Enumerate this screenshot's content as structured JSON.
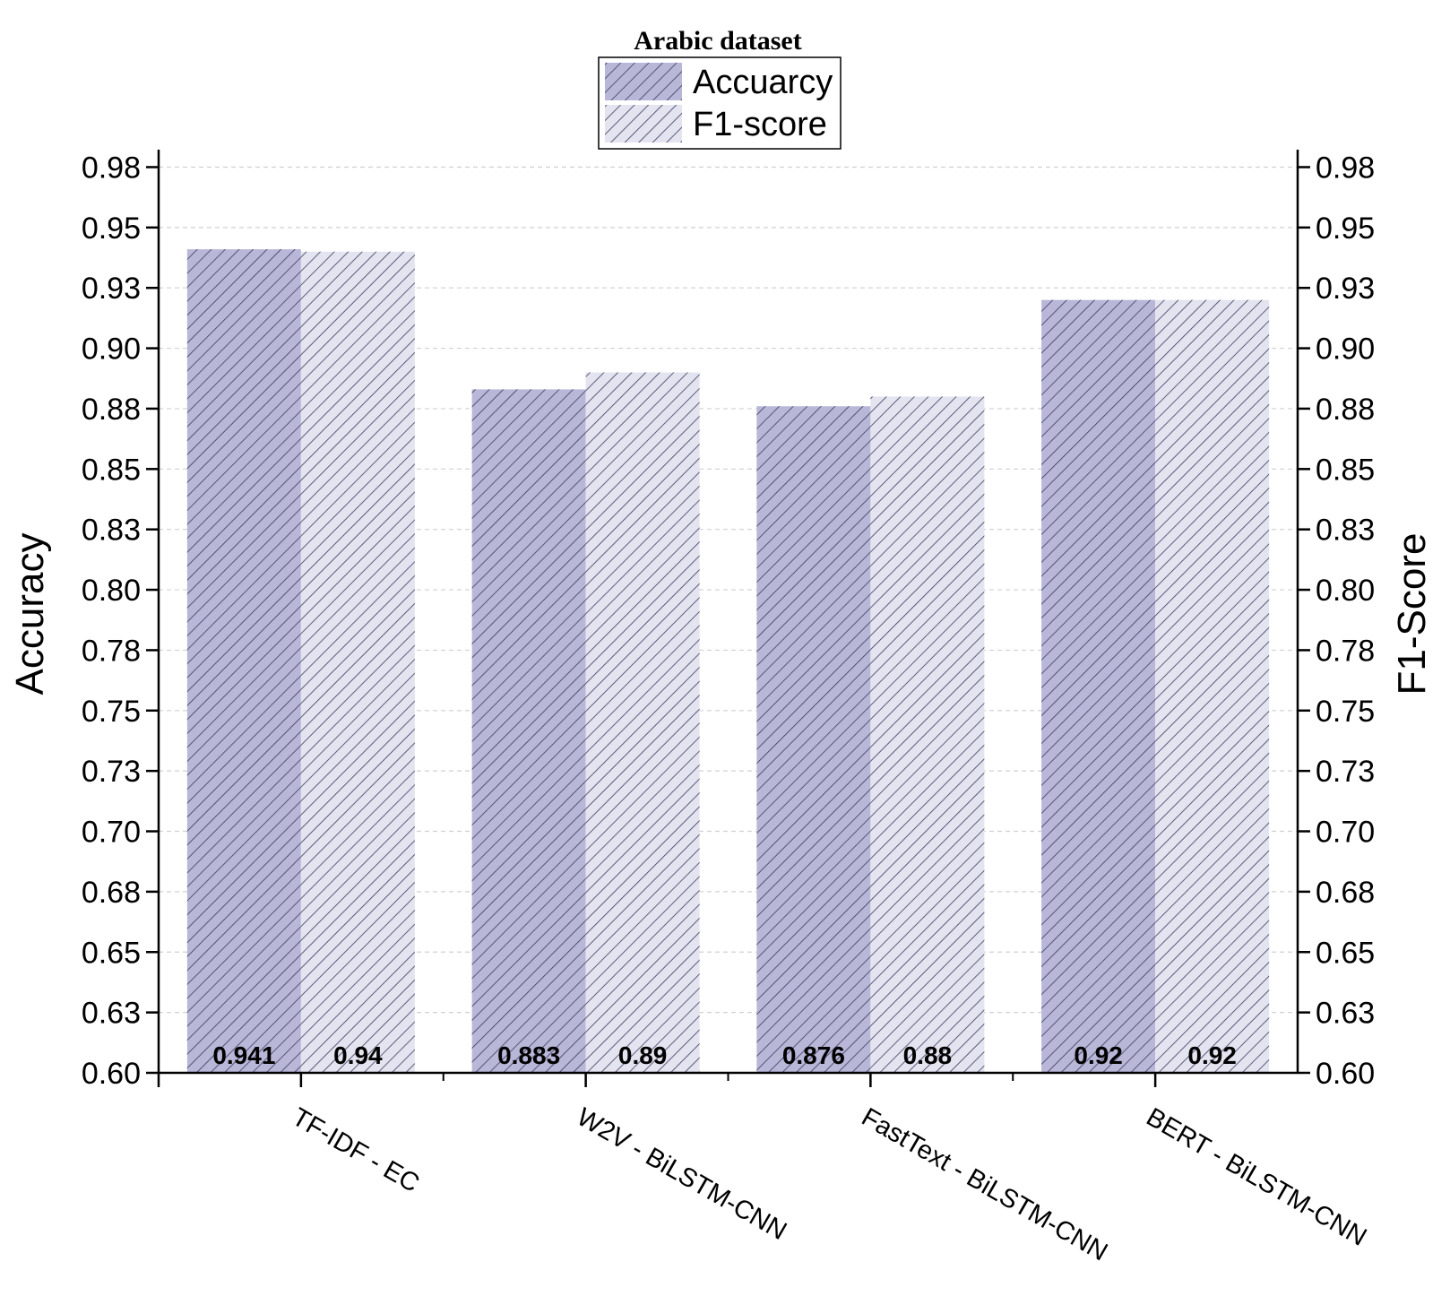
{
  "chart_data": {
    "type": "bar",
    "categories": [
      "TF-IDF - EC",
      "W2V - BiLSTM-CNN",
      "FastText - BiLSTM-CNN",
      "BERT - BiLSTM-CNN"
    ],
    "series": [
      {
        "name": "Accuarcy",
        "values": [
          0.941,
          0.883,
          0.876,
          0.92
        ],
        "labels": [
          "0.941",
          "0.883",
          "0.876",
          "0.92"
        ],
        "color": "#b9b7d8"
      },
      {
        "name": "F1-score",
        "values": [
          0.94,
          0.89,
          0.88,
          0.92
        ],
        "labels": [
          "0.94",
          "0.89",
          "0.88",
          "0.92"
        ],
        "color": "#e4e3f0"
      }
    ],
    "legend_title": "Arabic dataset",
    "legend_position": "top-center",
    "ylabel": "Accuracy",
    "ylabel_right": "F1-Score",
    "ylim": [
      0.6,
      0.98
    ],
    "yticks": [
      0.6,
      0.625,
      0.65,
      0.675,
      0.7,
      0.725,
      0.75,
      0.775,
      0.8,
      0.825,
      0.85,
      0.875,
      0.9,
      0.925,
      0.95,
      0.975
    ],
    "ytick_labels": [
      "0.60",
      "0.63",
      "0.65",
      "0.68",
      "0.70",
      "0.73",
      "0.75",
      "0.78",
      "0.80",
      "0.83",
      "0.85",
      "0.88",
      "0.90",
      "0.93",
      "0.95",
      "0.98"
    ],
    "grid": "horizontal dashed"
  }
}
